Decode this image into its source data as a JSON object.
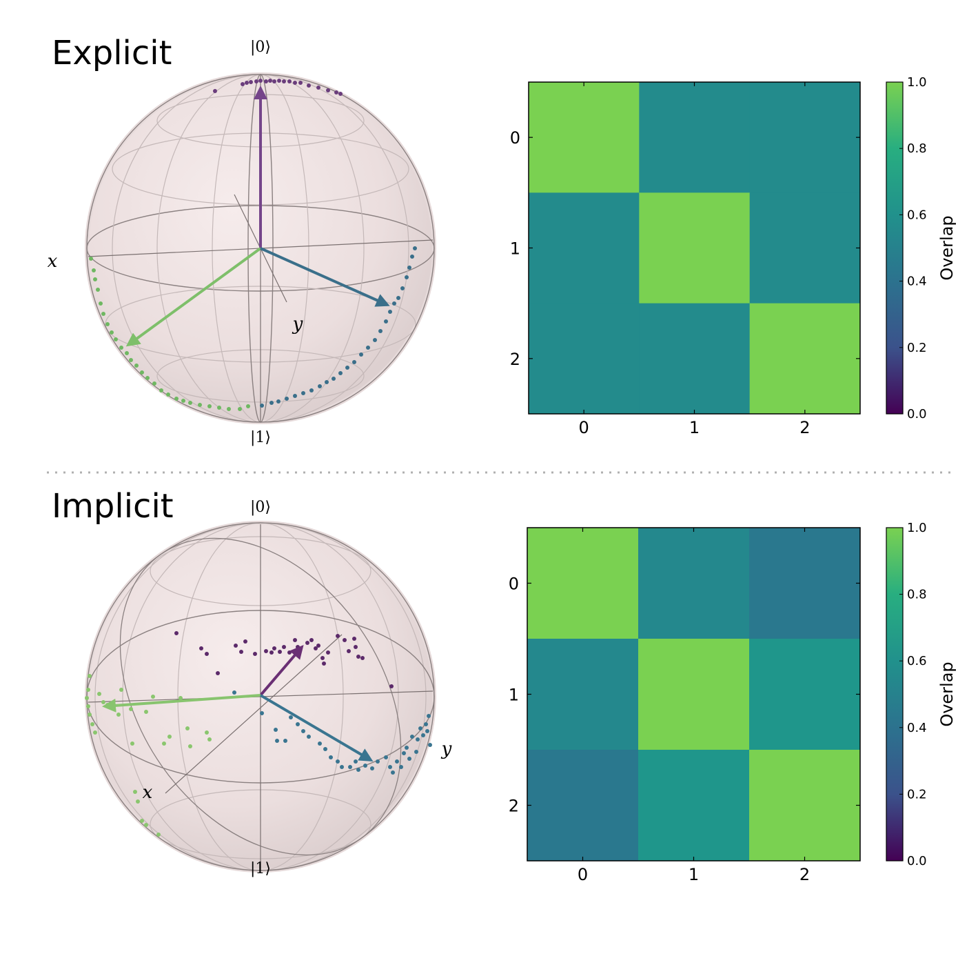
{
  "panels": [
    {
      "title": "Explicit",
      "bloch": {
        "labels": {
          "top": "|0⟩",
          "bottom": "|1⟩",
          "x": "x",
          "y": "y"
        },
        "arrow_colors": [
          "#75458a",
          "#7ebf6a",
          "#3a6f8a"
        ]
      },
      "chart_data": {
        "type": "heatmap",
        "x_categories": [
          "0",
          "1",
          "2"
        ],
        "y_categories": [
          "0",
          "1",
          "2"
        ],
        "values": [
          [
            1.0,
            0.48,
            0.48
          ],
          [
            0.48,
            1.0,
            0.48
          ],
          [
            0.48,
            0.48,
            1.0
          ]
        ],
        "colorbar": {
          "label": "Overlap",
          "range": [
            0.0,
            1.0
          ],
          "ticks": [
            "0.0",
            "0.2",
            "0.4",
            "0.6",
            "0.8",
            "1.0"
          ]
        }
      }
    },
    {
      "title": "Implicit",
      "bloch": {
        "labels": {
          "top": "|0⟩",
          "bottom": "|1⟩",
          "x": "x",
          "y": "y"
        },
        "arrow_colors": [
          "#6a2f74",
          "#88c46e",
          "#3a7590"
        ]
      },
      "chart_data": {
        "type": "heatmap",
        "x_categories": [
          "0",
          "1",
          "2"
        ],
        "y_categories": [
          "0",
          "1",
          "2"
        ],
        "values": [
          [
            1.0,
            0.47,
            0.42
          ],
          [
            0.47,
            1.0,
            0.58
          ],
          [
            0.42,
            0.58,
            1.0
          ]
        ],
        "colorbar": {
          "label": "Overlap",
          "range": [
            0.0,
            1.0
          ],
          "ticks": [
            "0.0",
            "0.2",
            "0.4",
            "0.6",
            "0.8",
            "1.0"
          ]
        }
      }
    }
  ]
}
